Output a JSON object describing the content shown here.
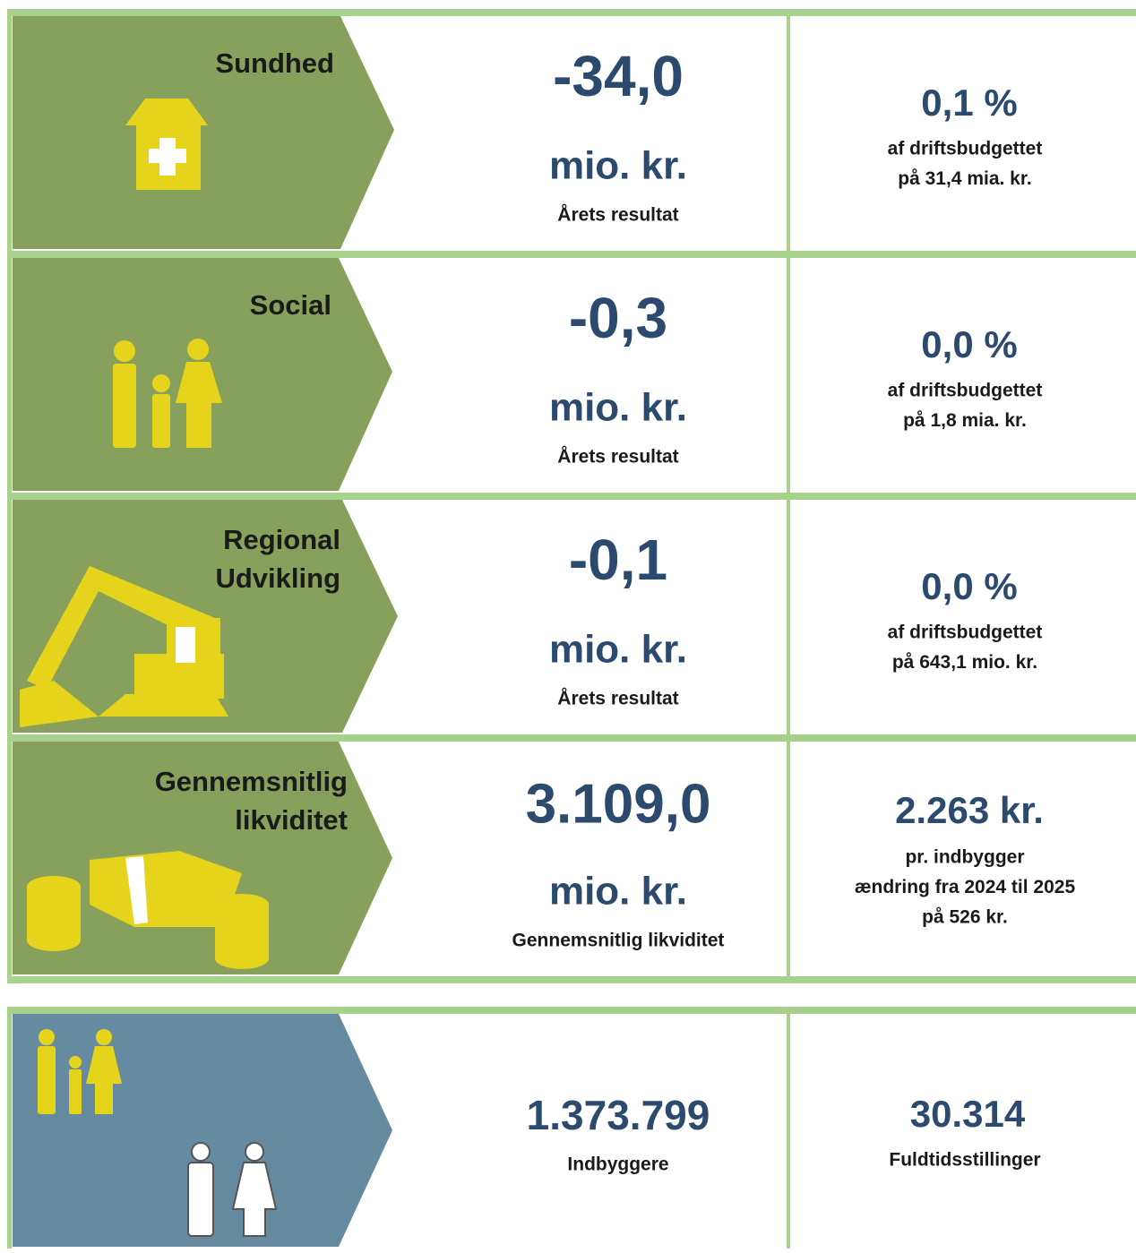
{
  "rows": [
    {
      "title": [
        "Sundhed"
      ],
      "value": "-34,0",
      "unit": "mio. kr.",
      "caption": "Årets resultat",
      "stat": "0,1 %",
      "stat_lines": [
        "af driftsbudgettet",
        "på 31,4 mia. kr."
      ]
    },
    {
      "title": [
        "Social"
      ],
      "value": "-0,3",
      "unit": "mio. kr.",
      "caption": "Årets resultat",
      "stat": "0,0 %",
      "stat_lines": [
        "af driftsbudgettet",
        "på 1,8 mia. kr."
      ]
    },
    {
      "title": [
        "Regional",
        "Udvikling"
      ],
      "value": "-0,1",
      "unit": "mio. kr.",
      "caption": "Årets resultat",
      "stat": "0,0 %",
      "stat_lines": [
        "af driftsbudgettet",
        "på 643,1 mio. kr."
      ]
    },
    {
      "title": [
        "Gennemsnitlig",
        "likviditet"
      ],
      "value": "3.109,0",
      "unit": "mio. kr.",
      "caption": "Gennemsnitlig likviditet",
      "stat": "2.263 kr.",
      "stat_lines": [
        "pr. indbygger",
        "ændring fra 2024 til 2025",
        "på 526 kr."
      ]
    }
  ],
  "population": {
    "value": "1.373.799",
    "caption": "Indbyggere"
  },
  "staff": {
    "value": "30.314",
    "caption": "Fuldtidsstillinger"
  }
}
